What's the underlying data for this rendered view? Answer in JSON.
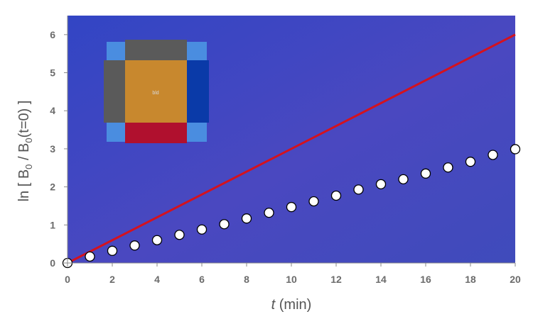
{
  "chart_data": {
    "type": "scatter",
    "xlabel_italic": "t",
    "xlabel_rest": " (min)",
    "ylabel_prefix": "ln [ B",
    "ylabel_sub1": "0",
    "ylabel_mid": " / B",
    "ylabel_sub2": "0",
    "ylabel_suffix": "(t=0) ]",
    "xlim": [
      0,
      20
    ],
    "ylim": [
      0,
      6.5
    ],
    "xticks": [
      0,
      2,
      4,
      6,
      8,
      10,
      12,
      14,
      16,
      18,
      20
    ],
    "yticks": [
      0,
      1,
      2,
      3,
      4,
      5,
      6
    ],
    "grid": false,
    "plot_background": "#3a4bbf",
    "series": [
      {
        "kind": "line",
        "color": "#d4121e",
        "x": [
          0,
          20
        ],
        "y": [
          0,
          6
        ]
      },
      {
        "kind": "markers",
        "marker_fill": "#ffffff",
        "marker_edge": "#000000",
        "x": [
          0,
          1,
          2,
          3,
          4,
          5,
          6,
          7,
          8,
          9,
          10,
          11,
          12,
          13,
          14,
          15,
          16,
          17,
          18,
          19,
          20
        ],
        "y": [
          0,
          0.17,
          0.32,
          0.46,
          0.6,
          0.74,
          0.88,
          1.02,
          1.17,
          1.32,
          1.47,
          1.62,
          1.77,
          1.93,
          2.07,
          2.2,
          2.35,
          2.51,
          2.66,
          2.84,
          2.99
        ]
      }
    ],
    "inset": {
      "label": "bld",
      "colors": {
        "center": "#c8882e",
        "top": "#5a5a5a",
        "left": "#5a5a5a",
        "right": "#0a3aa8",
        "bottom": "#b0102e",
        "corners": "#4a8de0"
      }
    }
  }
}
